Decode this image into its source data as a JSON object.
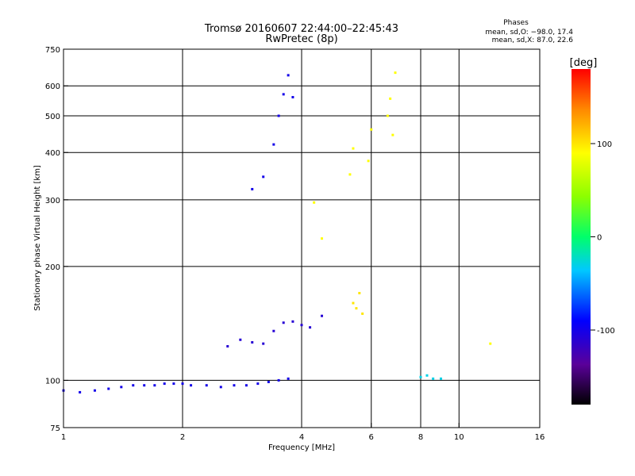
{
  "chart_data": {
    "type": "scatter",
    "title": "Tromsø 20160607 22:44:00–22:45:43",
    "subtitle": "RwPretec (8p)",
    "xlabel": "Frequency [MHz]",
    "ylabel": "Stationary phase Virtual Height [km]",
    "x_scale": "log",
    "y_scale": "log",
    "xlim": [
      1,
      16
    ],
    "ylim": [
      75,
      750
    ],
    "grid": true,
    "x_ticks": [
      1,
      2,
      4,
      6,
      8,
      10,
      16
    ],
    "x_tick_labels": [
      "1",
      "2",
      "4",
      "6",
      "8",
      "10",
      "16"
    ],
    "x_grid": [
      2,
      4,
      6,
      8,
      10
    ],
    "y_ticks": [
      75,
      100,
      200,
      300,
      400,
      500,
      600,
      750
    ],
    "y_tick_labels": [
      "75",
      "100",
      "200",
      "300",
      "400",
      "500",
      "600",
      "750"
    ],
    "y_grid": [
      100,
      200,
      300,
      400,
      500,
      600
    ],
    "phases": {
      "title": "Phases",
      "line_o": "mean, sd,O: −98.0, 17.4",
      "line_x": "mean, sd,X:  87.0, 22.6"
    },
    "colorbar": {
      "label": "[deg]",
      "min": -180,
      "max": 180,
      "ticks": [
        100,
        0,
        -100
      ],
      "tick_labels": [
        "100",
        "0",
        "-100"
      ]
    },
    "series": [
      {
        "x": [
          1.0,
          1.1,
          1.2,
          1.3,
          1.4,
          1.5,
          1.6,
          1.7,
          1.8,
          1.9,
          2.0,
          2.1,
          2.3,
          2.5,
          2.7,
          2.9,
          3.1,
          3.3,
          3.5,
          3.7
        ],
        "y": [
          94,
          93,
          94,
          95,
          96,
          97,
          97,
          97,
          98,
          98,
          98,
          97,
          97,
          96,
          97,
          97,
          98,
          99,
          100,
          101
        ],
        "phase": -100
      },
      {
        "x": [
          2.6,
          2.8,
          3.0,
          3.2,
          3.4,
          3.6,
          3.8,
          4.0,
          4.2,
          4.5
        ],
        "y": [
          123,
          128,
          126,
          125,
          135,
          142,
          143,
          140,
          138,
          148
        ],
        "phase": -110
      },
      {
        "x": [
          3.0,
          3.2,
          3.4,
          3.5,
          3.6,
          3.7,
          3.8
        ],
        "y": [
          320,
          345,
          420,
          500,
          570,
          640,
          560
        ],
        "phase": -100
      },
      {
        "x": [
          5.4,
          5.5,
          5.6,
          5.7
        ],
        "y": [
          160,
          155,
          170,
          150
        ],
        "phase": 100
      },
      {
        "x": [
          8.0,
          8.3,
          8.6,
          9.0
        ],
        "y": [
          102,
          103,
          101,
          101
        ],
        "phase": -30
      },
      {
        "x": [
          4.3,
          4.5,
          5.3,
          5.4,
          5.9,
          6.0,
          6.6,
          6.7,
          6.8,
          6.9,
          12.0
        ],
        "y": [
          295,
          237,
          350,
          410,
          380,
          460,
          500,
          555,
          445,
          650,
          125
        ],
        "phase": 90
      }
    ]
  }
}
